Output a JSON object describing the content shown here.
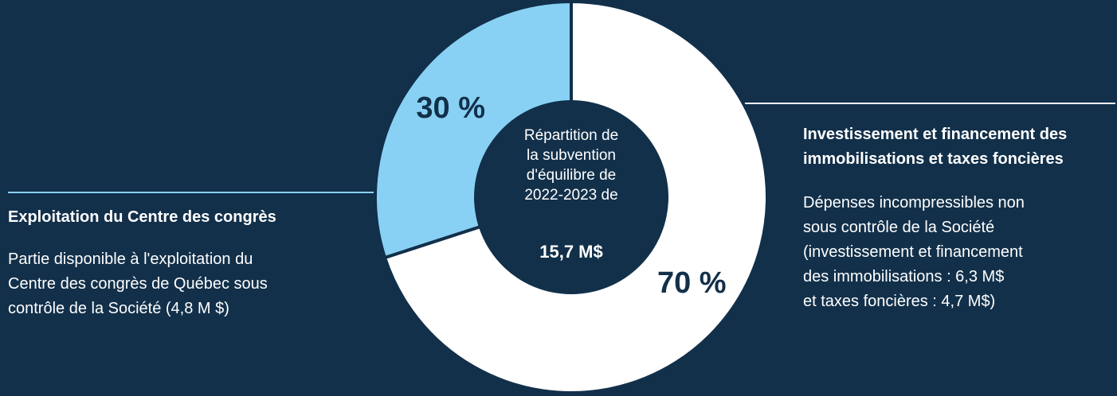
{
  "chart_data": {
    "type": "donut",
    "center_text": [
      "Répartition de",
      "la subvention",
      "d'équilibre de",
      "2022-2023 de"
    ],
    "center_total": "15,7 M$",
    "categories": [
      "Investissement et financement des immobilisations et taxes foncières",
      "Exploitation du Centre des congrès"
    ],
    "values": [
      70,
      30
    ],
    "value_labels": [
      "70 %",
      "30 %"
    ],
    "colors": [
      "#ffffff",
      "#89d1f4"
    ],
    "descriptions": [
      [
        "Dépenses incompressibles non",
        "sous contrôle de la Société",
        "(investissement et financement",
        "des immobilisations : 6,3 M$",
        "et taxes foncières : 4,7 M$)"
      ],
      [
        "Partie disponible à l'exploitation du",
        "Centre des congrès de Québec sous",
        "contrôle de la Société (4,8 M $)"
      ]
    ]
  }
}
